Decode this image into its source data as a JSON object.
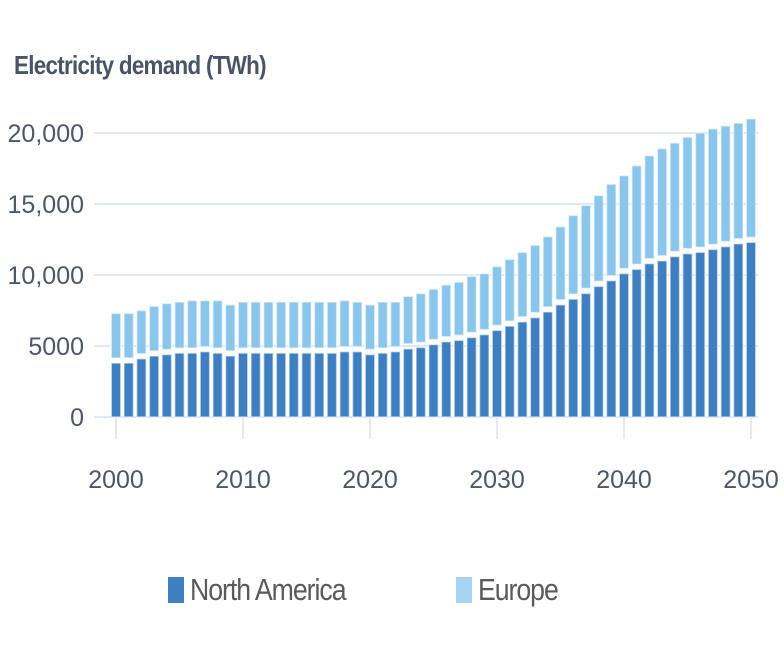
{
  "chart_data": {
    "type": "bar",
    "stacked": true,
    "title": "Electricity demand (TWh)",
    "xlabel": "",
    "ylabel": "",
    "ylim": [
      0,
      20000
    ],
    "yticks": [
      0,
      5000,
      10000,
      15000,
      20000
    ],
    "ytick_labels": [
      "0",
      "5000",
      "10,000",
      "15,000",
      "20,000"
    ],
    "xticks": [
      2000,
      2010,
      2020,
      2030,
      2040,
      2050
    ],
    "xtick_labels": [
      "2000",
      "2010",
      "2020",
      "2030",
      "2040",
      "2050"
    ],
    "grid": "horizontal",
    "legend_position": "bottom",
    "categories": [
      2000,
      2001,
      2002,
      2003,
      2004,
      2005,
      2006,
      2007,
      2008,
      2009,
      2010,
      2011,
      2012,
      2013,
      2014,
      2015,
      2016,
      2017,
      2018,
      2019,
      2020,
      2021,
      2022,
      2023,
      2024,
      2025,
      2026,
      2027,
      2028,
      2029,
      2030,
      2031,
      2032,
      2033,
      2034,
      2035,
      2036,
      2037,
      2038,
      2039,
      2040,
      2041,
      2042,
      2043,
      2044,
      2045,
      2046,
      2047,
      2048,
      2049,
      2050
    ],
    "series": [
      {
        "name": "North America",
        "color": "#3d7fc1",
        "values": [
          3800,
          3800,
          4100,
          4300,
          4400,
          4500,
          4500,
          4600,
          4500,
          4300,
          4500,
          4500,
          4500,
          4500,
          4500,
          4500,
          4500,
          4500,
          4600,
          4600,
          4400,
          4500,
          4600,
          4800,
          4900,
          5100,
          5300,
          5400,
          5600,
          5800,
          6100,
          6400,
          6700,
          7000,
          7400,
          7900,
          8300,
          8700,
          9200,
          9600,
          10100,
          10400,
          10800,
          11000,
          11300,
          11500,
          11600,
          11800,
          12000,
          12200,
          12300
        ]
      },
      {
        "name": "Europe",
        "color": "#8ac5ec",
        "values": [
          3500,
          3500,
          3400,
          3500,
          3600,
          3600,
          3700,
          3600,
          3700,
          3600,
          3600,
          3600,
          3600,
          3600,
          3600,
          3600,
          3600,
          3600,
          3600,
          3500,
          3500,
          3600,
          3500,
          3700,
          3800,
          3900,
          4000,
          4100,
          4300,
          4300,
          4500,
          4700,
          4900,
          5100,
          5300,
          5500,
          5900,
          6200,
          6400,
          6800,
          6900,
          7300,
          7600,
          7900,
          8000,
          8200,
          8400,
          8500,
          8500,
          8500,
          8700
        ]
      }
    ]
  }
}
